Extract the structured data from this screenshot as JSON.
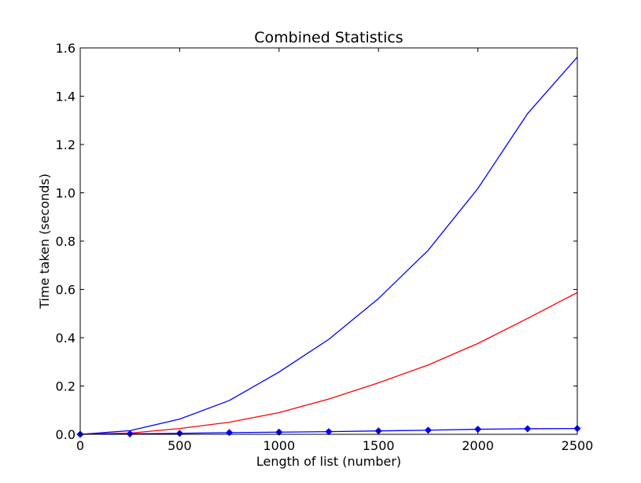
{
  "chart_data": {
    "type": "line",
    "title": "Combined Statistics",
    "xlabel": "Length of list (number)",
    "ylabel": "Time taken (seconds)",
    "xlim": [
      0,
      2500
    ],
    "ylim": [
      0,
      1.6
    ],
    "xticks": [
      0,
      500,
      1000,
      1500,
      2000,
      2500
    ],
    "yticks": [
      0.0,
      0.2,
      0.4,
      0.6,
      0.8,
      1.0,
      1.2,
      1.4,
      1.6
    ],
    "ytick_labels": [
      "0.0",
      "0.2",
      "0.4",
      "0.6",
      "0.8",
      "1.0",
      "1.2",
      "1.4",
      "1.6"
    ],
    "grid": false,
    "x": [
      0,
      250,
      500,
      750,
      1000,
      1250,
      1500,
      1750,
      2000,
      2250,
      2500
    ],
    "series": [
      {
        "color": "#0000ff",
        "marker": "none",
        "values": [
          0.0,
          0.015,
          0.063,
          0.14,
          0.258,
          0.393,
          0.562,
          0.762,
          1.018,
          1.328,
          1.562
        ]
      },
      {
        "color": "#ff0000",
        "marker": "none",
        "values": [
          0.0,
          0.005,
          0.024,
          0.05,
          0.09,
          0.146,
          0.213,
          0.287,
          0.376,
          0.48,
          0.587
        ]
      },
      {
        "color": "#0000ff",
        "marker": "diamond",
        "values": [
          0.0,
          0.002,
          0.004,
          0.007,
          0.009,
          0.011,
          0.014,
          0.017,
          0.021,
          0.023,
          0.024
        ]
      }
    ]
  }
}
